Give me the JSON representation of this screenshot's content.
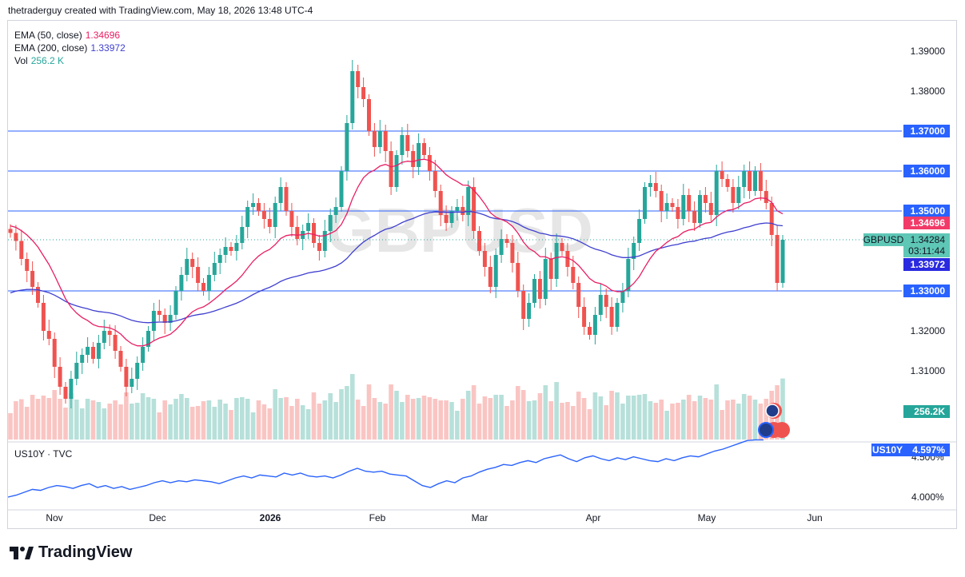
{
  "header": {
    "text": "thetraderguy created with TradingView.com, May 18, 2026 13:48 UTC-4"
  },
  "legend": [
    {
      "label": "EMA (50, close)",
      "value": "1.34696",
      "color": "#e91e63"
    },
    {
      "label": "EMA (200, close)",
      "value": "1.33972",
      "color": "#3f3fd0"
    },
    {
      "label": "Vol",
      "value": "256.2 K",
      "color": "#26a69a"
    }
  ],
  "watermark": "GBPUSD",
  "price_axis": {
    "ticks": [
      "1.39000",
      "1.38000",
      "1.37000",
      "1.36000",
      "1.35000",
      "1.34696",
      "1.33972",
      "1.33000",
      "1.32000",
      "1.31000"
    ]
  },
  "labels": {
    "symbol": "GBPUSD",
    "last_price": "1.34284",
    "countdown": "03:11:44",
    "ema50": "1.34696",
    "ema200": "1.33972",
    "volume": "256.2K",
    "us10y_symbol": "US10Y",
    "us10y_value": "4.597%"
  },
  "lower_pane": {
    "title": "US10Y · TVC",
    "ticks": [
      "4.500%",
      "4.000%"
    ]
  },
  "time_axis": [
    "Nov",
    "Dec",
    "2026",
    "Feb",
    "Mar",
    "Apr",
    "May",
    "Jun"
  ],
  "footer": {
    "brand": "TradingView"
  },
  "colors": {
    "up": "#26a69a",
    "down": "#ef5350",
    "level": "#2962ff",
    "ema50": "#e91e63",
    "ema200": "#3f3fd0",
    "us10y": "#2962ff"
  },
  "chart_data": {
    "type": "candlestick",
    "symbol": "GBPUSD",
    "horizontal_levels": [
      1.37,
      1.36,
      1.35,
      1.33
    ],
    "ylim": [
      1.3,
      1.392
    ],
    "closes": [
      1.3445,
      1.3425,
      1.338,
      1.335,
      1.331,
      1.327,
      1.32,
      1.318,
      1.311,
      1.306,
      1.303,
      1.308,
      1.312,
      1.314,
      1.316,
      1.313,
      1.317,
      1.32,
      1.319,
      1.315,
      1.311,
      1.306,
      1.308,
      1.312,
      1.316,
      1.32,
      1.325,
      1.324,
      1.322,
      1.324,
      1.33,
      1.334,
      1.338,
      1.336,
      1.332,
      1.33,
      1.334,
      1.337,
      1.339,
      1.341,
      1.34,
      1.342,
      1.346,
      1.351,
      1.352,
      1.35,
      1.348,
      1.346,
      1.352,
      1.356,
      1.35,
      1.346,
      1.343,
      1.345,
      1.347,
      1.342,
      1.34,
      1.345,
      1.349,
      1.351,
      1.36,
      1.372,
      1.385,
      1.381,
      1.378,
      1.37,
      1.366,
      1.37,
      1.365,
      1.356,
      1.364,
      1.369,
      1.365,
      1.361,
      1.367,
      1.364,
      1.36,
      1.355,
      1.349,
      1.347,
      1.35,
      1.351,
      1.349,
      1.356,
      1.345,
      1.34,
      1.336,
      1.331,
      1.339,
      1.343,
      1.342,
      1.337,
      1.33,
      1.323,
      1.327,
      1.333,
      1.328,
      1.338,
      1.333,
      1.342,
      1.34,
      1.336,
      1.332,
      1.326,
      1.321,
      1.319,
      1.324,
      1.329,
      1.326,
      1.321,
      1.327,
      1.33,
      1.338,
      1.342,
      1.348,
      1.356,
      1.357,
      1.355,
      1.35,
      1.352,
      1.351,
      1.348,
      1.354,
      1.35,
      1.347,
      1.354,
      1.352,
      1.349,
      1.36,
      1.358,
      1.356,
      1.352,
      1.356,
      1.36,
      1.355,
      1.36,
      1.355,
      1.352,
      1.344,
      1.332,
      1.3428
    ],
    "ema50_last": 1.34696,
    "ema200_last": 1.33972,
    "volume_last": "256.2K",
    "us10y": {
      "ylim": [
        3.9,
        4.65
      ],
      "last": 4.597,
      "values": [
        4.0,
        4.02,
        4.05,
        4.08,
        4.07,
        4.1,
        4.12,
        4.11,
        4.09,
        4.12,
        4.14,
        4.1,
        4.12,
        4.09,
        4.11,
        4.08,
        4.1,
        4.12,
        4.15,
        4.17,
        4.15,
        4.17,
        4.16,
        4.18,
        4.17,
        4.16,
        4.14,
        4.17,
        4.2,
        4.22,
        4.2,
        4.23,
        4.22,
        4.21,
        4.25,
        4.23,
        4.25,
        4.22,
        4.21,
        4.22,
        4.2,
        4.23,
        4.27,
        4.3,
        4.27,
        4.26,
        4.27,
        4.24,
        4.23,
        4.22,
        4.17,
        4.12,
        4.1,
        4.14,
        4.17,
        4.15,
        4.2,
        4.22,
        4.26,
        4.29,
        4.31,
        4.34,
        4.33,
        4.36,
        4.38,
        4.36,
        4.4,
        4.42,
        4.44,
        4.4,
        4.37,
        4.41,
        4.43,
        4.4,
        4.38,
        4.41,
        4.39,
        4.42,
        4.4,
        4.38,
        4.37,
        4.4,
        4.38,
        4.41,
        4.43,
        4.42,
        4.45,
        4.48,
        4.5,
        4.53,
        4.56,
        4.59,
        4.597,
        4.597
      ]
    }
  }
}
